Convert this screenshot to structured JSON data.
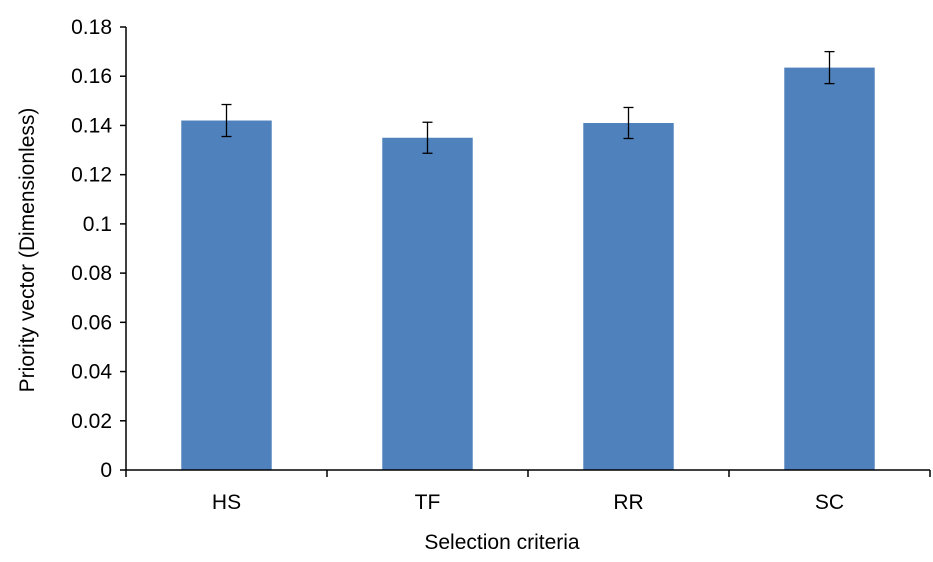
{
  "chart_data": {
    "type": "bar",
    "title": "",
    "xlabel": "Selection criteria",
    "ylabel": "Priority vector (Dimensionless)",
    "categories": [
      "HS",
      "TF",
      "RR",
      "SC"
    ],
    "values": [
      0.142,
      0.135,
      0.141,
      0.1635
    ],
    "error": [
      0.0065,
      0.0063,
      0.0063,
      0.0065
    ],
    "ylim": [
      0,
      0.18
    ],
    "yticks": [
      0,
      0.02,
      0.04,
      0.06,
      0.08,
      0.1,
      0.12,
      0.14,
      0.16,
      0.18
    ],
    "ytick_labels": [
      "0",
      "0.02",
      "0.04",
      "0.06",
      "0.08",
      "0.1",
      "0.12",
      "0.14",
      "0.16",
      "0.18"
    ],
    "grid": false,
    "legend": "none",
    "bar_color": "#4f81bd"
  }
}
